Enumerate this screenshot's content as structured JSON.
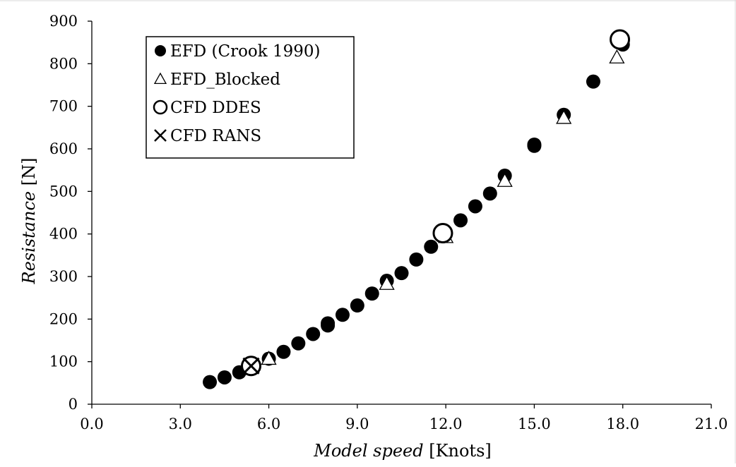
{
  "chart_data": {
    "type": "scatter",
    "xlabel": {
      "italic": "Model speed",
      "unit": " [Knots]"
    },
    "ylabel": {
      "italic": "Resistance",
      "unit": " [N]"
    },
    "xlim": [
      0,
      21
    ],
    "ylim": [
      0,
      900
    ],
    "xticks": [
      "0.0",
      "3.0",
      "6.0",
      "9.0",
      "12.0",
      "15.0",
      "18.0",
      "21.0"
    ],
    "yticks": [
      "0",
      "100",
      "200",
      "300",
      "400",
      "500",
      "600",
      "700",
      "800",
      "900"
    ],
    "grid": false,
    "legend_position": "top-left",
    "series": [
      {
        "name": "EFD (Crook 1990)",
        "marker": "filled-circle",
        "points": [
          [
            4.0,
            52
          ],
          [
            4.5,
            63
          ],
          [
            5.0,
            75
          ],
          [
            5.5,
            87
          ],
          [
            6.0,
            107
          ],
          [
            6.5,
            123
          ],
          [
            7.0,
            143
          ],
          [
            7.5,
            165
          ],
          [
            8.0,
            185
          ],
          [
            8.0,
            190
          ],
          [
            8.5,
            210
          ],
          [
            9.0,
            232
          ],
          [
            9.5,
            260
          ],
          [
            10.0,
            290
          ],
          [
            10.5,
            308
          ],
          [
            11.0,
            340
          ],
          [
            11.5,
            370
          ],
          [
            12.0,
            402
          ],
          [
            12.5,
            432
          ],
          [
            13.0,
            465
          ],
          [
            13.5,
            495
          ],
          [
            14.0,
            537
          ],
          [
            15.0,
            607
          ],
          [
            15.0,
            610
          ],
          [
            16.0,
            680
          ],
          [
            17.0,
            758
          ],
          [
            18.0,
            845
          ]
        ]
      },
      {
        "name": "EFD_Blocked",
        "marker": "open-triangle",
        "points": [
          [
            6.0,
            107
          ],
          [
            10.0,
            283
          ],
          [
            12.0,
            393
          ],
          [
            14.0,
            525
          ],
          [
            16.0,
            673
          ],
          [
            17.8,
            815
          ]
        ]
      },
      {
        "name": "CFD DDES",
        "marker": "open-circle",
        "points": [
          [
            5.4,
            90
          ],
          [
            11.9,
            402
          ],
          [
            17.9,
            857
          ]
        ]
      },
      {
        "name": "CFD RANS",
        "marker": "x-cross",
        "points": [
          [
            5.4,
            90
          ]
        ]
      }
    ]
  }
}
